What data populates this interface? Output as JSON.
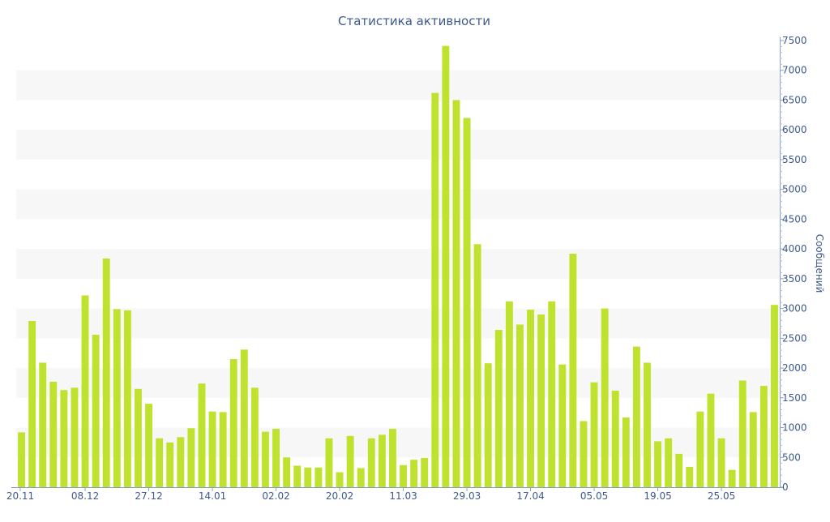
{
  "chart_data": {
    "type": "bar",
    "title": "Статистика активности",
    "ylabel": "Сообщений",
    "xlabel": "",
    "ylim": [
      0,
      7500
    ],
    "y_ticks": [
      0,
      500,
      1000,
      1500,
      2000,
      2500,
      3000,
      3500,
      4000,
      4500,
      5000,
      5500,
      6000,
      6500,
      7000,
      7500
    ],
    "y_axis_side": "right",
    "grid": "alternating horizontal bands",
    "x_tick_labels": [
      {
        "label": "20.11",
        "index": 0
      },
      {
        "label": "08.12",
        "index": 6
      },
      {
        "label": "27.12",
        "index": 12
      },
      {
        "label": "14.01",
        "index": 18
      },
      {
        "label": "02.02",
        "index": 24
      },
      {
        "label": "20.02",
        "index": 30
      },
      {
        "label": "11.03",
        "index": 36
      },
      {
        "label": "29.03",
        "index": 42
      },
      {
        "label": "17.04",
        "index": 48
      },
      {
        "label": "05.05",
        "index": 54
      },
      {
        "label": "19.05",
        "index": 60
      },
      {
        "label": "25.05",
        "index": 66
      }
    ],
    "bar_color": "#bfe22e",
    "values": [
      920,
      2790,
      2090,
      1770,
      1630,
      1670,
      3220,
      2560,
      3840,
      2990,
      2970,
      1650,
      1400,
      820,
      750,
      840,
      990,
      1740,
      1270,
      1260,
      2150,
      2310,
      1670,
      930,
      980,
      500,
      360,
      330,
      330,
      820,
      250,
      860,
      320,
      820,
      880,
      980,
      370,
      460,
      490,
      6620,
      7410,
      6500,
      6200,
      4080,
      2080,
      2640,
      3120,
      2730,
      2980,
      2900,
      3120,
      2060,
      3920,
      1110,
      1760,
      3000,
      1620,
      1170,
      2360,
      2090,
      770,
      820,
      560,
      340,
      1270,
      1570,
      820,
      290,
      1790,
      1260,
      1700,
      3060
    ]
  }
}
